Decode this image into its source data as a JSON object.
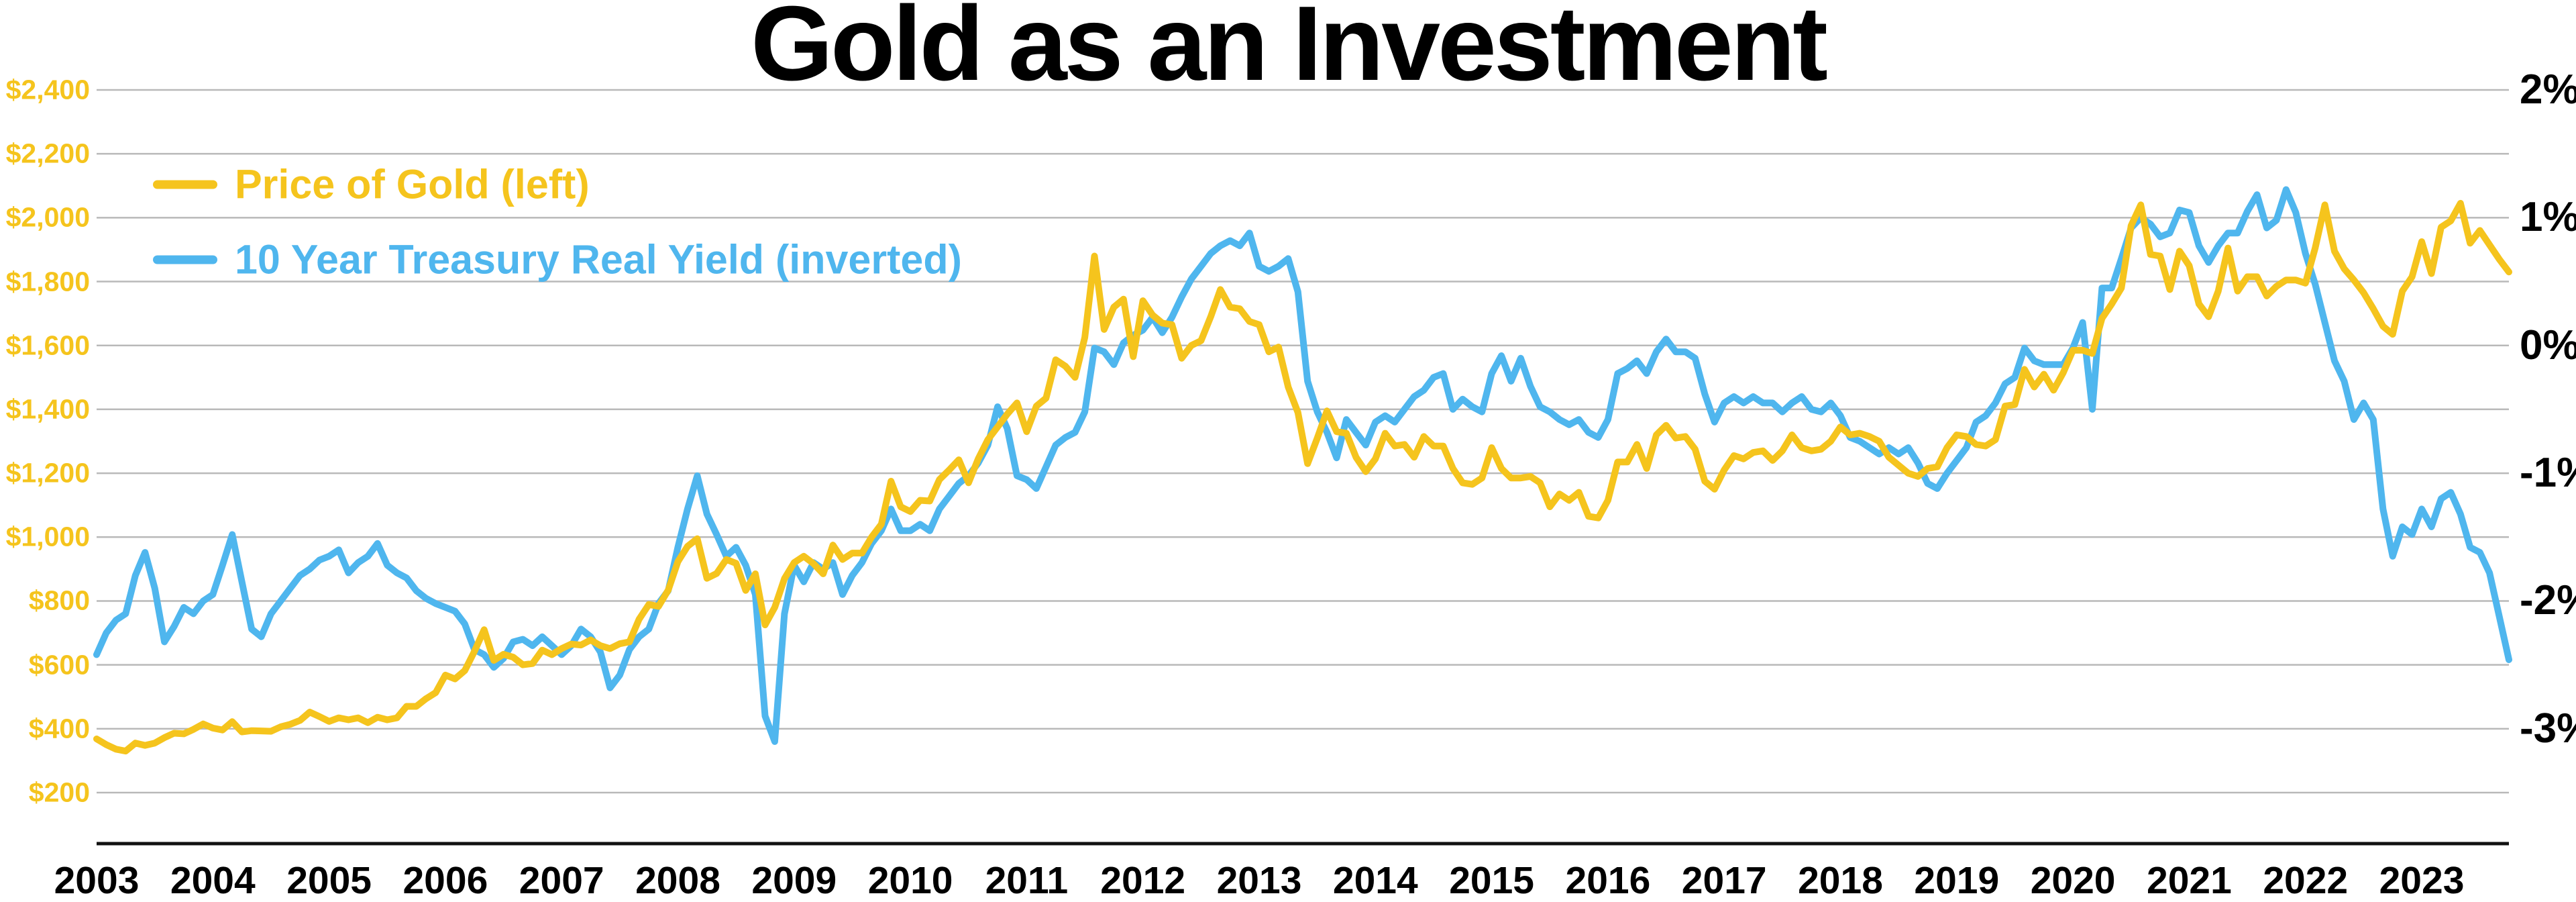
{
  "title": "Gold as an Investment",
  "colors": {
    "gold": "#F5C41D",
    "blue": "#4FB6EE",
    "gridline": "#b9b9b9",
    "axis_line": "#111111",
    "text": "#000000",
    "background": "#ffffff"
  },
  "legend": {
    "items": [
      {
        "label": "Price of Gold (left)",
        "color": "#F5C41D",
        "series": "gold"
      },
      {
        "label": "10 Year Treasury Real Yield (inverted)",
        "color": "#4FB6EE",
        "series": "real_yield_inverted"
      }
    ]
  },
  "left_axis": {
    "tick_labels": [
      "$2,400",
      "$2,200",
      "$2,000",
      "$1,800",
      "$1,600",
      "$1,400",
      "$1,200",
      "$1,000",
      "$800",
      "$600",
      "$400",
      "$200"
    ],
    "tick_values": [
      2400,
      2200,
      2000,
      1800,
      1600,
      1400,
      1200,
      1000,
      800,
      600,
      400,
      200
    ],
    "color": "#F5C41D"
  },
  "right_axis": {
    "tick_labels": [
      "2%",
      "1%",
      "0%",
      "-1%",
      "-2%",
      "-3%"
    ],
    "tick_values": [
      2,
      1,
      0,
      -1,
      -2,
      -3
    ],
    "color": "#000000"
  },
  "x_axis": {
    "tick_labels": [
      "2003",
      "2004",
      "2005",
      "2006",
      "2007",
      "2008",
      "2009",
      "2010",
      "2011",
      "2012",
      "2013",
      "2014",
      "2015",
      "2016",
      "2017",
      "2018",
      "2019",
      "2020",
      "2021",
      "2022",
      "2023"
    ]
  },
  "chart_data": {
    "type": "line",
    "title": "Gold as an Investment",
    "x_start": "2003-01",
    "x_end": "2023-10",
    "interval": "monthly",
    "grid": "horizontal-only",
    "legend_position": "top-left-inside",
    "left_ylim": [
      200,
      2400
    ],
    "right_axis_mapping": "right-axis value v (%) is drawn at left-scale dollars = 1600 + 400*v; right ticks 2,1,0,-1,-2,-3 align with $2400,$2000,$1600,$1200,$800,$400",
    "note": "blue series stores the inverted yield exactly as read on the right axis (actual 10Y TIPS real yield = -value)",
    "series": [
      {
        "name": "Price of Gold (left)",
        "unit": "USD per troy ounce",
        "color": "#F5C41D",
        "values": [
          368,
          350,
          336,
          330,
          355,
          348,
          355,
          372,
          386,
          384,
          398,
          415,
          402,
          396,
          422,
          390,
          394,
          393,
          392,
          406,
          414,
          426,
          452,
          438,
          423,
          434,
          428,
          434,
          419,
          436,
          428,
          434,
          470,
          470,
          494,
          513,
          568,
          556,
          582,
          642,
          710,
          614,
          633,
          624,
          600,
          604,
          646,
          632,
          651,
          665,
          662,
          678,
          660,
          651,
          666,
          672,
          743,
          789,
          783,
          834,
          923,
          971,
          995,
          871,
          886,
          930,
          918,
          833,
          885,
          725,
          780,
          870,
          920,
          940,
          917,
          885,
          975,
          930,
          950,
          950,
          1000,
          1040,
          1175,
          1095,
          1080,
          1115,
          1113,
          1180,
          1210,
          1242,
          1170,
          1245,
          1305,
          1345,
          1385,
          1420,
          1330,
          1410,
          1435,
          1555,
          1535,
          1500,
          1625,
          1880,
          1650,
          1720,
          1745,
          1565,
          1740,
          1695,
          1670,
          1665,
          1560,
          1600,
          1615,
          1690,
          1775,
          1720,
          1715,
          1675,
          1665,
          1580,
          1595,
          1470,
          1390,
          1230,
          1310,
          1395,
          1330,
          1325,
          1250,
          1205,
          1245,
          1325,
          1285,
          1290,
          1250,
          1315,
          1285,
          1285,
          1215,
          1170,
          1165,
          1185,
          1280,
          1215,
          1185,
          1185,
          1190,
          1170,
          1095,
          1135,
          1115,
          1140,
          1065,
          1060,
          1115,
          1235,
          1235,
          1290,
          1215,
          1320,
          1350,
          1310,
          1315,
          1275,
          1175,
          1150,
          1210,
          1255,
          1245,
          1265,
          1270,
          1240,
          1270,
          1320,
          1280,
          1270,
          1275,
          1300,
          1345,
          1320,
          1325,
          1315,
          1300,
          1250,
          1225,
          1200,
          1190,
          1215,
          1220,
          1280,
          1320,
          1315,
          1290,
          1285,
          1305,
          1410,
          1415,
          1525,
          1470,
          1510,
          1460,
          1515,
          1585,
          1585,
          1575,
          1685,
          1730,
          1780,
          1975,
          2040,
          1885,
          1880,
          1775,
          1895,
          1850,
          1730,
          1690,
          1770,
          1905,
          1770,
          1815,
          1815,
          1755,
          1785,
          1805,
          1805,
          1795,
          1905,
          2040,
          1895,
          1840,
          1805,
          1765,
          1715,
          1660,
          1635,
          1770,
          1815,
          1925,
          1825,
          1970,
          1990,
          2045,
          1920,
          1960,
          1915,
          1870,
          1830
        ]
      },
      {
        "name": "10 Year Treasury Real Yield (inverted)",
        "unit": "percent, as labeled on right axis (inverted sign of actual yield)",
        "color": "#4FB6EE",
        "values": [
          -2.42,
          -2.25,
          -2.15,
          -2.1,
          -1.8,
          -1.62,
          -1.9,
          -2.32,
          -2.2,
          -2.05,
          -2.1,
          -2.0,
          -1.95,
          -1.72,
          -1.48,
          -1.85,
          -2.22,
          -2.28,
          -2.1,
          -2.0,
          -1.9,
          -1.8,
          -1.75,
          -1.68,
          -1.65,
          -1.6,
          -1.78,
          -1.7,
          -1.65,
          -1.55,
          -1.72,
          -1.78,
          -1.82,
          -1.92,
          -1.98,
          -2.02,
          -2.05,
          -2.08,
          -2.18,
          -2.38,
          -2.42,
          -2.52,
          -2.45,
          -2.32,
          -2.3,
          -2.35,
          -2.28,
          -2.35,
          -2.42,
          -2.35,
          -2.22,
          -2.28,
          -2.4,
          -2.68,
          -2.58,
          -2.38,
          -2.28,
          -2.22,
          -2.02,
          -1.92,
          -1.58,
          -1.28,
          -1.02,
          -1.32,
          -1.48,
          -1.65,
          -1.58,
          -1.72,
          -1.95,
          -2.9,
          -3.1,
          -2.1,
          -1.72,
          -1.85,
          -1.7,
          -1.75,
          -1.7,
          -1.95,
          -1.8,
          -1.7,
          -1.55,
          -1.45,
          -1.28,
          -1.45,
          -1.45,
          -1.4,
          -1.45,
          -1.28,
          -1.18,
          -1.08,
          -1.02,
          -0.92,
          -0.78,
          -0.48,
          -0.65,
          -1.02,
          -1.05,
          -1.12,
          -0.95,
          -0.78,
          -0.72,
          -0.68,
          -0.52,
          -0.02,
          -0.05,
          -0.15,
          0.02,
          0.08,
          0.12,
          0.22,
          0.1,
          0.22,
          0.38,
          0.52,
          0.62,
          0.72,
          0.78,
          0.82,
          0.78,
          0.88,
          0.62,
          0.58,
          0.62,
          0.68,
          0.42,
          -0.28,
          -0.52,
          -0.68,
          -0.88,
          -0.58,
          -0.68,
          -0.78,
          -0.6,
          -0.55,
          -0.6,
          -0.5,
          -0.4,
          -0.35,
          -0.25,
          -0.22,
          -0.5,
          -0.42,
          -0.48,
          -0.52,
          -0.22,
          -0.08,
          -0.28,
          -0.1,
          -0.32,
          -0.48,
          -0.52,
          -0.58,
          -0.62,
          -0.58,
          -0.68,
          -0.72,
          -0.58,
          -0.22,
          -0.18,
          -0.12,
          -0.22,
          -0.05,
          0.05,
          -0.05,
          -0.05,
          -0.1,
          -0.38,
          -0.6,
          -0.45,
          -0.4,
          -0.45,
          -0.4,
          -0.45,
          -0.45,
          -0.52,
          -0.45,
          -0.4,
          -0.5,
          -0.52,
          -0.45,
          -0.55,
          -0.72,
          -0.75,
          -0.8,
          -0.85,
          -0.8,
          -0.85,
          -0.8,
          -0.92,
          -1.08,
          -1.12,
          -1.0,
          -0.9,
          -0.8,
          -0.6,
          -0.55,
          -0.45,
          -0.3,
          -0.25,
          -0.02,
          -0.12,
          -0.15,
          -0.15,
          -0.15,
          -0.02,
          0.18,
          -0.5,
          0.45,
          0.45,
          0.68,
          0.92,
          1.0,
          0.95,
          0.85,
          0.88,
          1.06,
          1.04,
          0.78,
          0.65,
          0.78,
          0.88,
          0.88,
          1.05,
          1.18,
          0.92,
          0.98,
          1.22,
          1.04,
          0.72,
          0.48,
          0.18,
          -0.12,
          -0.28,
          -0.58,
          -0.45,
          -0.58,
          -1.28,
          -1.65,
          -1.42,
          -1.48,
          -1.28,
          -1.42,
          -1.2,
          -1.15,
          -1.32,
          -1.58,
          -1.62,
          -1.78,
          -2.12,
          -2.46
        ]
      }
    ]
  }
}
